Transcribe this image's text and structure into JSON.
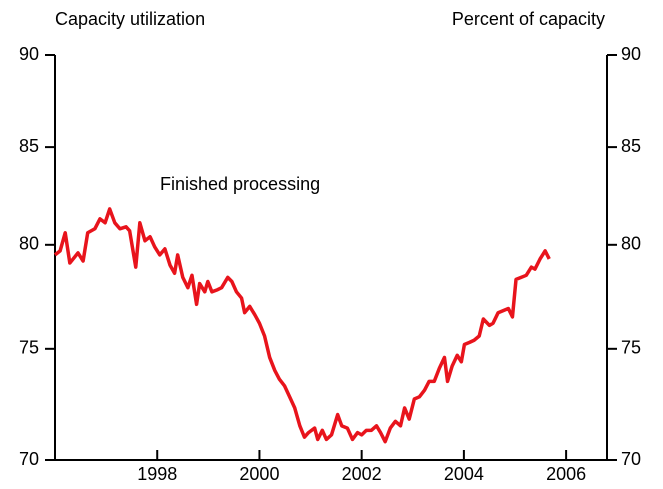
{
  "chart_data": {
    "type": "line",
    "title": "Capacity utilization",
    "ylabel_right": "Percent of capacity",
    "annotation": "Finished processing",
    "xlim": [
      1996,
      2006.8
    ],
    "xticks": [
      1998,
      2000,
      2002,
      2004,
      2006
    ],
    "ylim": [
      70,
      90
    ],
    "yticks": [
      70,
      75,
      80,
      85,
      90
    ],
    "ylog": true,
    "x": [
      1996.0,
      1996.1,
      1996.2,
      1996.29,
      1996.45,
      1996.55,
      1996.64,
      1996.78,
      1996.88,
      1996.98,
      1997.07,
      1997.17,
      1997.27,
      1997.39,
      1997.46,
      1997.58,
      1997.66,
      1997.76,
      1997.86,
      1997.95,
      1998.05,
      1998.15,
      1998.25,
      1998.34,
      1998.4,
      1998.5,
      1998.6,
      1998.68,
      1998.77,
      1998.83,
      1998.93,
      1998.99,
      1999.07,
      1999.18,
      1999.26,
      1999.38,
      1999.46,
      1999.55,
      1999.65,
      1999.71,
      1999.81,
      1999.91,
      2000.0,
      2000.1,
      2000.2,
      2000.3,
      2000.39,
      2000.49,
      2000.59,
      2000.69,
      2000.79,
      2000.88,
      2000.96,
      2001.08,
      2001.14,
      2001.23,
      2001.31,
      2001.41,
      2001.53,
      2001.61,
      2001.72,
      2001.82,
      2001.92,
      2002.0,
      2002.09,
      2002.19,
      2002.29,
      2002.37,
      2002.46,
      2002.56,
      2002.66,
      2002.76,
      2002.84,
      2002.93,
      2003.03,
      2003.13,
      2003.23,
      2003.32,
      2003.42,
      2003.52,
      2003.62,
      2003.68,
      2003.77,
      2003.87,
      2003.95,
      2004.01,
      2004.11,
      2004.2,
      2004.3,
      2004.38,
      2004.5,
      2004.57,
      2004.67,
      2004.77,
      2004.87,
      2004.95,
      2005.02,
      2005.12,
      2005.22,
      2005.32,
      2005.39,
      2005.49,
      2005.59,
      2005.67
    ],
    "series": [
      {
        "color": "#e8141c",
        "values": [
          79.5,
          79.7,
          80.6,
          79.1,
          79.6,
          79.2,
          80.6,
          80.8,
          81.3,
          81.1,
          81.8,
          81.1,
          80.8,
          80.9,
          80.7,
          78.9,
          81.1,
          80.2,
          80.4,
          79.9,
          79.5,
          79.8,
          79.0,
          78.6,
          79.5,
          78.4,
          77.9,
          78.5,
          77.1,
          78.1,
          77.7,
          78.2,
          77.7,
          77.8,
          77.9,
          78.4,
          78.2,
          77.7,
          77.4,
          76.7,
          77.0,
          76.6,
          76.2,
          75.6,
          74.6,
          74.0,
          73.6,
          73.3,
          72.8,
          72.3,
          71.5,
          71.0,
          71.2,
          71.4,
          70.9,
          71.3,
          70.9,
          71.1,
          72.0,
          71.5,
          71.4,
          70.9,
          71.2,
          71.1,
          71.3,
          71.3,
          71.5,
          71.2,
          70.8,
          71.4,
          71.7,
          71.5,
          72.3,
          71.8,
          72.7,
          72.8,
          73.1,
          73.5,
          73.5,
          74.1,
          74.6,
          73.5,
          74.2,
          74.7,
          74.4,
          75.2,
          75.3,
          75.4,
          75.6,
          76.4,
          76.1,
          76.2,
          76.7,
          76.8,
          76.9,
          76.5,
          78.3,
          78.4,
          78.5,
          78.9,
          78.8,
          79.3,
          79.7,
          79.3
        ]
      }
    ]
  }
}
